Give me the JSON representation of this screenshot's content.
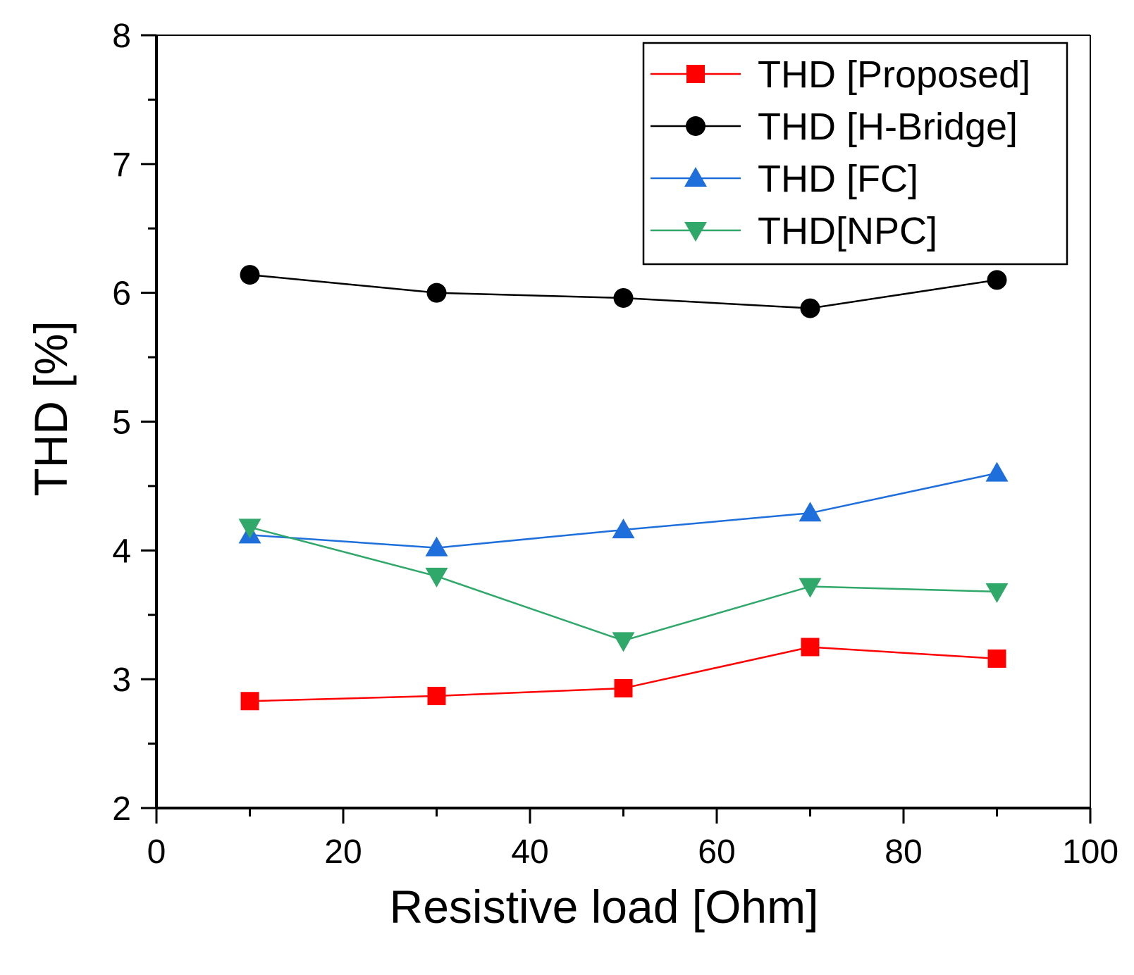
{
  "chart_data": {
    "type": "line",
    "title": "",
    "xlabel": "Resistive load [Ohm]",
    "ylabel": "THD [%]",
    "xlim": [
      0,
      100
    ],
    "ylim": [
      2,
      8
    ],
    "x_ticks": [
      0,
      20,
      40,
      60,
      80,
      100
    ],
    "x_tick_labels": [
      "0",
      "20",
      "40",
      "60",
      "80",
      "100"
    ],
    "y_ticks": [
      2,
      3,
      4,
      5,
      6,
      7,
      8
    ],
    "y_tick_labels": [
      "2",
      "3",
      "4",
      "5",
      "6",
      "7",
      "8"
    ],
    "x_minor_step": 10,
    "y_minor_step": 0.5,
    "grid": false,
    "legend_position": "top-right",
    "x": [
      10,
      30,
      50,
      70,
      90
    ],
    "series": [
      {
        "name": "THD [Proposed]",
        "marker": "square",
        "color": "#ff0000",
        "values": [
          2.83,
          2.87,
          2.93,
          3.25,
          3.16
        ]
      },
      {
        "name": "THD [H-Bridge]",
        "marker": "circle",
        "color": "#000000",
        "values": [
          6.14,
          6.0,
          5.96,
          5.88,
          6.1
        ]
      },
      {
        "name": "THD [FC]",
        "marker": "triangle-up",
        "color": "#1e6fdc",
        "values": [
          4.12,
          4.02,
          4.16,
          4.29,
          4.6
        ]
      },
      {
        "name": "THD[NPC]",
        "marker": "triangle-down",
        "color": "#2fa86a",
        "values": [
          4.18,
          3.8,
          3.3,
          3.72,
          3.68
        ]
      }
    ]
  }
}
